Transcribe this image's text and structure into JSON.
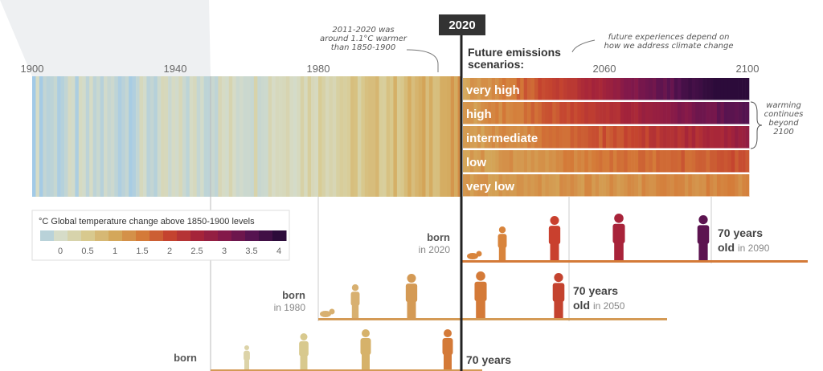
{
  "timeline": {
    "start": "1900",
    "labels": [
      "1940",
      "1980",
      "2060"
    ],
    "end": "2100",
    "now": "2020"
  },
  "annotation_past": [
    "2011-2020 was",
    "around 1.1°C warmer",
    "than 1850-1900"
  ],
  "scenarios_title": [
    "Future emissions",
    "scenarios:"
  ],
  "future_note": [
    "future experiences depend on",
    "how we address climate change"
  ],
  "scenarios": [
    "very high",
    "high",
    "intermediate",
    "low",
    "very low"
  ],
  "beyond": [
    "warming",
    "continues",
    "beyond",
    "2100"
  ],
  "legend": {
    "unit": "°C",
    "title": "Global temperature change above 1850-1900 levels",
    "ticks": [
      "0",
      "0.5",
      "1",
      "1.5",
      "2",
      "2.5",
      "3",
      "3.5",
      "4"
    ]
  },
  "generations": [
    {
      "born": "born",
      "born_in": "in 2020",
      "age": "70 years",
      "old": "old",
      "old_in": "in 2090"
    },
    {
      "born": "born",
      "born_in": "in 1980",
      "age": "70 years",
      "old": "old",
      "old_in": "in 2050"
    },
    {
      "born": "born",
      "age": "70 years"
    }
  ]
}
